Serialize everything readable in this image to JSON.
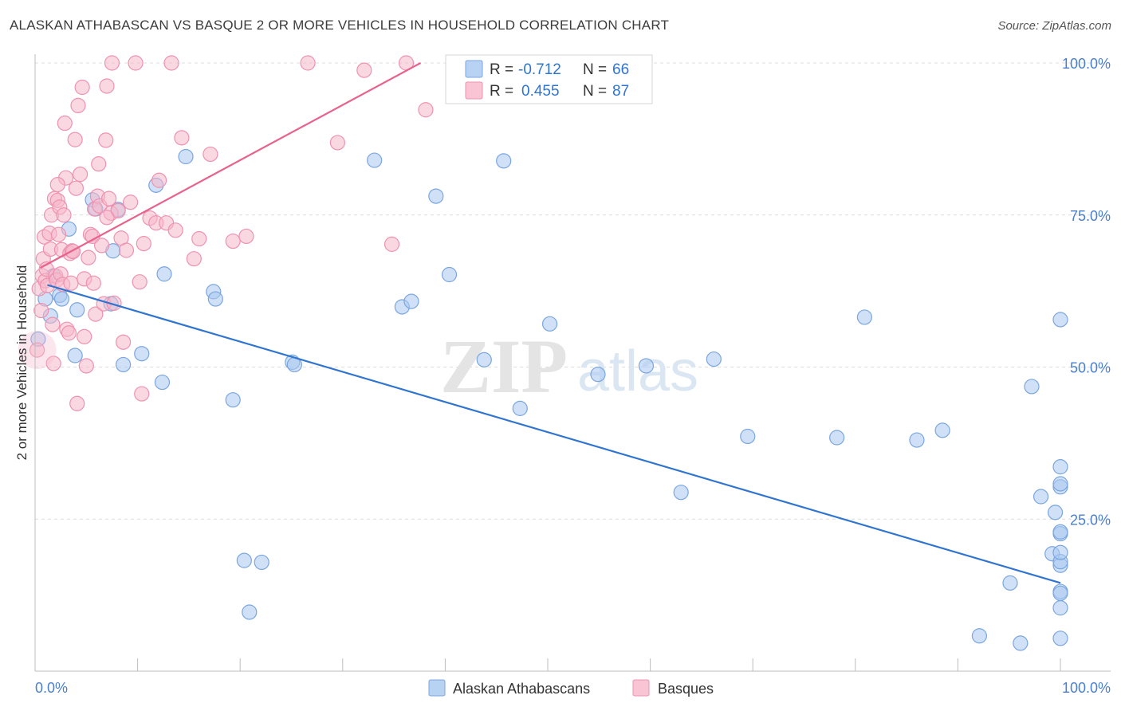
{
  "title": "ALASKAN ATHABASCAN VS BASQUE 2 OR MORE VEHICLES IN HOUSEHOLD CORRELATION CHART",
  "source": "Source: ZipAtlas.com",
  "watermark": {
    "zip": "ZIP",
    "atlas": "atlas"
  },
  "colors": {
    "blue_fill": "#a9c8f0",
    "blue_stroke": "#7aa6e0",
    "blue_line": "#2f74d0",
    "pink_fill": "#f6b8cb",
    "pink_stroke": "#ee92b0",
    "pink_line": "#e8628c",
    "tick_label": "#4a7fd0",
    "grid": "#dcdcdc"
  },
  "legend": [
    {
      "r_label": "R =",
      "r_value": "-0.712",
      "n_label": "N =",
      "n_value": "66"
    },
    {
      "r_label": "R =",
      "r_value": "0.455",
      "n_label": "N =",
      "n_value": "87"
    }
  ],
  "chart_data": {
    "type": "scatter",
    "title": "ALASKAN ATHABASCAN VS BASQUE 2 OR MORE VEHICLES IN HOUSEHOLD CORRELATION CHART",
    "xlabel": "",
    "ylabel": "2 or more Vehicles in Household",
    "xlim": [
      0,
      100
    ],
    "ylim": [
      0,
      100
    ],
    "x_tick_labels": [
      "0.0%",
      "100.0%"
    ],
    "y_tick_labels": [
      "100.0%",
      "75.0%",
      "50.0%",
      "25.0%"
    ],
    "y_ticks": [
      100,
      75,
      50,
      25
    ],
    "grid": true,
    "legend_position": "top-center",
    "series": [
      {
        "name": "Alaskan Athabascans",
        "trend": {
          "x0": 1.2,
          "y0": 63.5,
          "x1": 100,
          "y1": 14.5
        },
        "points": [
          [
            0.3,
            54.6
          ],
          [
            1.0,
            61.2
          ],
          [
            1.5,
            58.4
          ],
          [
            1.8,
            65.0
          ],
          [
            2.4,
            61.8
          ],
          [
            2.6,
            61.2
          ],
          [
            3.3,
            72.7
          ],
          [
            3.9,
            51.9
          ],
          [
            4.1,
            59.4
          ],
          [
            5.6,
            77.5
          ],
          [
            5.9,
            76.0
          ],
          [
            7.4,
            60.4
          ],
          [
            7.6,
            69.1
          ],
          [
            8.1,
            75.9
          ],
          [
            8.6,
            50.4
          ],
          [
            10.4,
            52.2
          ],
          [
            11.8,
            79.9
          ],
          [
            12.4,
            47.5
          ],
          [
            12.6,
            65.3
          ],
          [
            14.7,
            84.6
          ],
          [
            17.4,
            62.4
          ],
          [
            17.6,
            61.2
          ],
          [
            19.3,
            44.6
          ],
          [
            20.4,
            18.2
          ],
          [
            20.9,
            9.7
          ],
          [
            22.1,
            17.9
          ],
          [
            25.1,
            50.8
          ],
          [
            25.3,
            50.4
          ],
          [
            33.1,
            84.0
          ],
          [
            35.8,
            59.9
          ],
          [
            36.7,
            60.8
          ],
          [
            39.1,
            78.1
          ],
          [
            40.4,
            65.2
          ],
          [
            43.8,
            51.2
          ],
          [
            45.7,
            83.9
          ],
          [
            47.3,
            43.2
          ],
          [
            50.2,
            57.1
          ],
          [
            54.9,
            48.8
          ],
          [
            59.6,
            50.2
          ],
          [
            63.0,
            29.4
          ],
          [
            66.2,
            51.3
          ],
          [
            69.5,
            38.6
          ],
          [
            78.2,
            38.4
          ],
          [
            80.9,
            58.2
          ],
          [
            86.0,
            38.0
          ],
          [
            88.5,
            39.6
          ],
          [
            92.1,
            5.8
          ],
          [
            95.1,
            14.5
          ],
          [
            96.1,
            4.6
          ],
          [
            97.2,
            46.8
          ],
          [
            98.1,
            28.7
          ],
          [
            99.2,
            19.3
          ],
          [
            99.5,
            26.1
          ],
          [
            100.0,
            5.4
          ],
          [
            100.0,
            17.4
          ],
          [
            100.0,
            18.0
          ],
          [
            100.0,
            19.5
          ],
          [
            100.0,
            30.3
          ],
          [
            100.0,
            22.6
          ],
          [
            100.0,
            57.8
          ],
          [
            100.0,
            13.1
          ],
          [
            100.0,
            12.8
          ],
          [
            100.0,
            30.8
          ],
          [
            100.0,
            10.4
          ],
          [
            100.0,
            33.6
          ],
          [
            100.0,
            22.9
          ]
        ]
      },
      {
        "name": "Basques",
        "trend": {
          "x0": 0.5,
          "y0": 66.3,
          "x1": 37.6,
          "y1": 100.0
        },
        "points": [
          [
            0.2,
            52.8
          ],
          [
            0.4,
            62.9
          ],
          [
            0.6,
            59.3
          ],
          [
            0.7,
            65.0
          ],
          [
            0.8,
            67.8
          ],
          [
            0.9,
            71.4
          ],
          [
            1.0,
            64.2
          ],
          [
            1.1,
            66.1
          ],
          [
            1.2,
            63.4
          ],
          [
            1.4,
            72.0
          ],
          [
            1.5,
            69.4
          ],
          [
            1.6,
            75.0
          ],
          [
            1.7,
            57.0
          ],
          [
            1.8,
            50.6
          ],
          [
            1.9,
            77.7
          ],
          [
            2.0,
            65.0
          ],
          [
            2.1,
            64.3
          ],
          [
            2.2,
            77.4
          ],
          [
            2.3,
            71.8
          ],
          [
            2.4,
            76.3
          ],
          [
            2.5,
            65.3
          ],
          [
            2.6,
            69.3
          ],
          [
            2.7,
            63.6
          ],
          [
            2.8,
            75.0
          ],
          [
            2.9,
            90.1
          ],
          [
            3.0,
            81.1
          ],
          [
            3.1,
            56.2
          ],
          [
            3.3,
            55.6
          ],
          [
            3.4,
            68.7
          ],
          [
            3.5,
            63.8
          ],
          [
            3.6,
            69.1
          ],
          [
            3.7,
            69.0
          ],
          [
            3.9,
            87.4
          ],
          [
            4.0,
            79.4
          ],
          [
            4.1,
            44.0
          ],
          [
            4.2,
            93.0
          ],
          [
            4.4,
            81.7
          ],
          [
            4.6,
            96.0
          ],
          [
            4.8,
            64.5
          ],
          [
            5.0,
            50.2
          ],
          [
            5.2,
            68.0
          ],
          [
            5.4,
            71.8
          ],
          [
            5.6,
            71.5
          ],
          [
            5.7,
            63.8
          ],
          [
            5.8,
            76.0
          ],
          [
            5.9,
            58.7
          ],
          [
            6.1,
            78.1
          ],
          [
            6.2,
            83.4
          ],
          [
            6.3,
            76.5
          ],
          [
            6.5,
            70.0
          ],
          [
            6.7,
            60.4
          ],
          [
            6.9,
            87.3
          ],
          [
            7.0,
            96.2
          ],
          [
            7.2,
            77.7
          ],
          [
            7.4,
            75.3
          ],
          [
            7.5,
            100.0
          ],
          [
            7.7,
            60.5
          ],
          [
            8.1,
            75.7
          ],
          [
            8.4,
            71.2
          ],
          [
            8.6,
            54.1
          ],
          [
            8.9,
            69.2
          ],
          [
            9.3,
            77.1
          ],
          [
            9.8,
            100.0
          ],
          [
            10.2,
            64.0
          ],
          [
            10.4,
            45.6
          ],
          [
            10.6,
            70.3
          ],
          [
            11.2,
            74.5
          ],
          [
            11.8,
            73.7
          ],
          [
            12.1,
            80.7
          ],
          [
            12.8,
            73.7
          ],
          [
            13.3,
            100.0
          ],
          [
            13.7,
            72.5
          ],
          [
            14.3,
            87.7
          ],
          [
            15.5,
            67.8
          ],
          [
            16.0,
            71.1
          ],
          [
            17.1,
            85.0
          ],
          [
            19.3,
            70.7
          ],
          [
            20.6,
            71.5
          ],
          [
            26.6,
            100.0
          ],
          [
            29.5,
            86.9
          ],
          [
            32.1,
            98.8
          ],
          [
            34.8,
            70.2
          ],
          [
            36.2,
            100.0
          ],
          [
            38.1,
            92.3
          ],
          [
            4.8,
            55.0
          ],
          [
            7.0,
            74.6
          ],
          [
            2.2,
            80.0
          ]
        ]
      }
    ]
  },
  "legend_bottom": [
    {
      "label": "Alaskan Athabascans"
    },
    {
      "label": "Basques"
    }
  ]
}
